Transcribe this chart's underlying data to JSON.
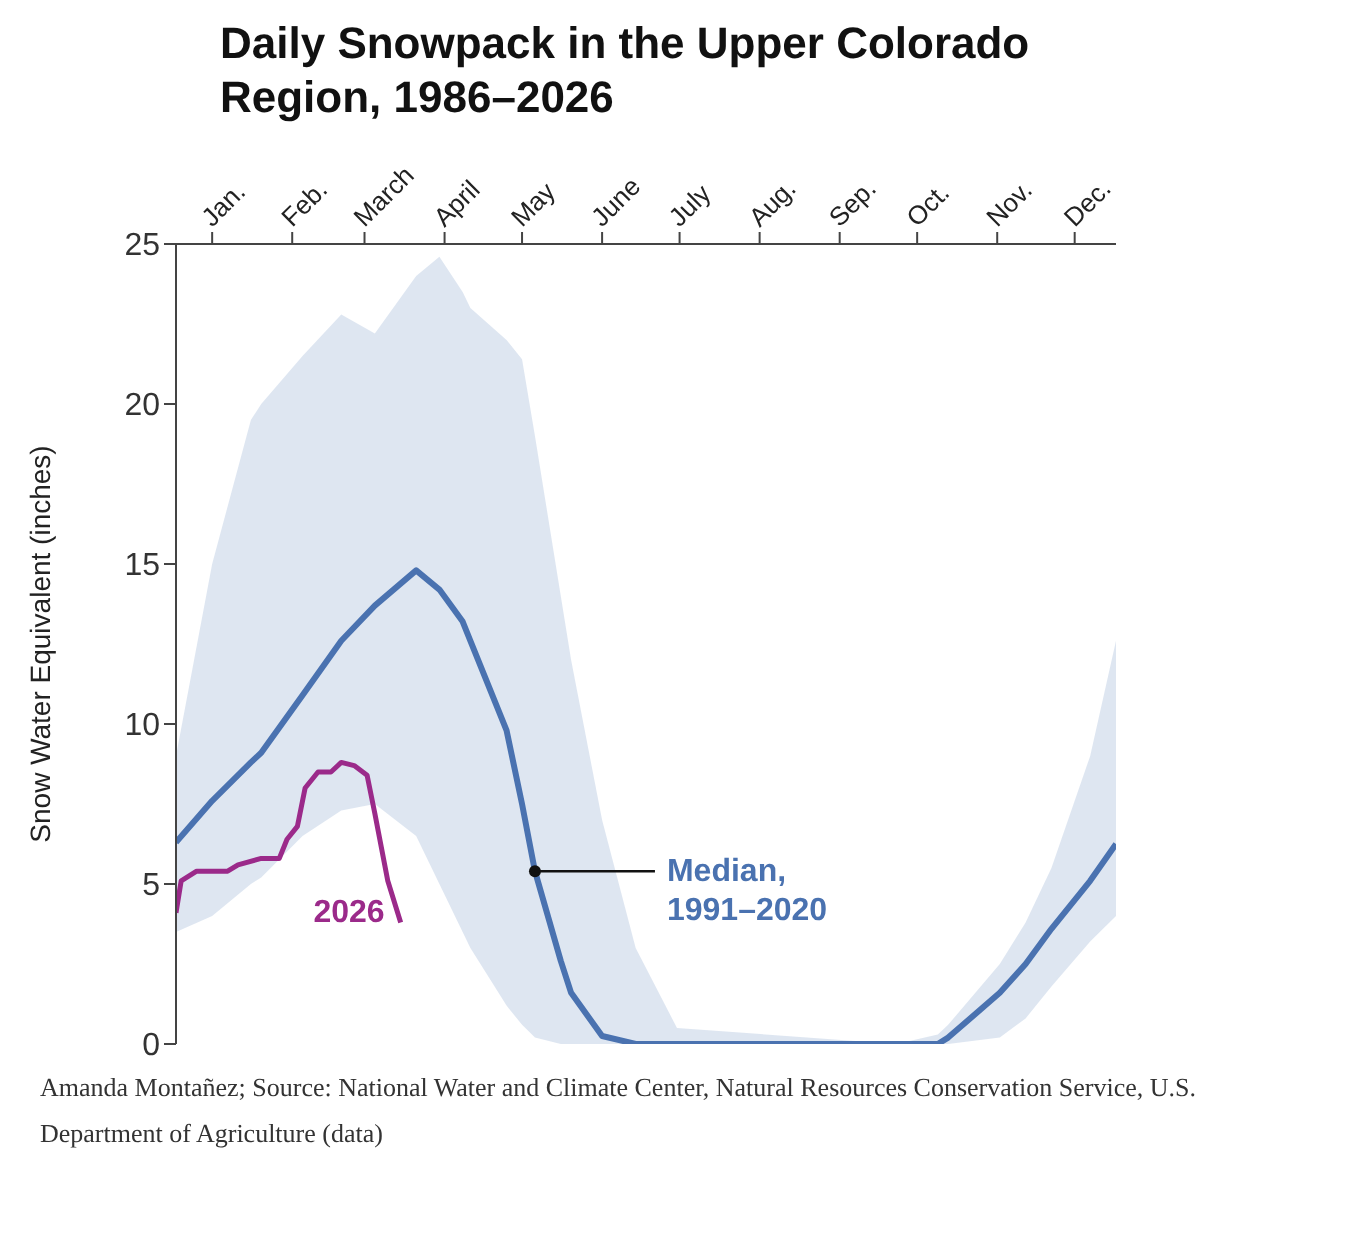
{
  "chart_data": {
    "type": "line",
    "title": "Daily Snowpack in the Upper Colorado Region, 1986–2026",
    "ylabel": "Snow Water Equivalent (inches)",
    "annotations": [
      {
        "text": "Median,\n1991–2020",
        "x": "--05-20",
        "y": 5.4
      },
      "Amanda Montañez; Source: National Water and Climate Center, Natural Resources Conservation Service, U.S. Department of Agriculture (data)"
    ],
    "xlim": [
      "--01-01",
      "--12-31"
    ],
    "xticks": [
      {
        "value": "--01-15",
        "label": "Jan."
      },
      {
        "value": "--02-15",
        "label": "Feb."
      },
      {
        "value": "--03-15",
        "label": "March"
      },
      {
        "value": "--04-15",
        "label": "April"
      },
      {
        "value": "--05-15",
        "label": "May"
      },
      {
        "value": "--06-15",
        "label": "June"
      },
      {
        "value": "--07-15",
        "label": "July"
      },
      {
        "value": "--08-15",
        "label": "Aug."
      },
      {
        "value": "--09-15",
        "label": "Sep."
      },
      {
        "value": "--10-15",
        "label": "Oct."
      },
      {
        "value": "--11-15",
        "label": "Nov."
      },
      {
        "value": "--12-15",
        "label": "Dec."
      }
    ],
    "ylim": [
      0,
      25
    ],
    "yticks": [
      0,
      5,
      10,
      15,
      20,
      25
    ],
    "grid": false,
    "legend": false,
    "marker": "none",
    "series": [
      {
        "color": "#4a72b0",
        "x": [
          "--01-01",
          "--01-15",
          "--01-30",
          "--02-03",
          "--02-19",
          "--03-06",
          "--03-19",
          "--04-04",
          "--04-13",
          "--04-22",
          "--04-25",
          "--05-09",
          "--05-15",
          "--05-20",
          "--05-30",
          "--06-03",
          "--06-15",
          "--06-28",
          "--07-14",
          "--10-07",
          "--10-23",
          "--10-27",
          "--11-16",
          "--11-26",
          "--12-06",
          "--12-21",
          "--12-31"
        ],
        "values": [
          6.3,
          7.6,
          8.8,
          9.1,
          10.9,
          12.6,
          13.7,
          14.8,
          14.2,
          13.2,
          12.6,
          9.8,
          7.5,
          5.4,
          2.6,
          1.6,
          0.25,
          0,
          0,
          0,
          0,
          0.2,
          1.6,
          2.5,
          3.6,
          5.1,
          6.25
        ],
        "lower": [
          3.5,
          4,
          5,
          5.2,
          6.5,
          7.3,
          7.5,
          6.5,
          5,
          3.5,
          3,
          1.2,
          0.6,
          0.2,
          0,
          0,
          0,
          0,
          0,
          0,
          0,
          0,
          0.2,
          0.8,
          1.8,
          3.2,
          4
        ],
        "upper": [
          9,
          15,
          19.5,
          20,
          21.5,
          22.8,
          22.2,
          24,
          24.6,
          23.5,
          23,
          22,
          21.4,
          19,
          14,
          12,
          7,
          3,
          0.5,
          0,
          0.3,
          0.6,
          2.5,
          3.8,
          5.5,
          9,
          12.6
        ]
      },
      {
        "name": "2026",
        "color": "#9b2a8a",
        "x": [
          "--01-01",
          "--01-03",
          "--01-09",
          "--01-21",
          "--01-25",
          "--02-03",
          "--02-10",
          "--02-13",
          "--02-17",
          "--02-20",
          "--02-25",
          "--03-02",
          "--03-06",
          "--03-11",
          "--03-16",
          "--03-19",
          "--03-24",
          "--03-29"
        ],
        "values": [
          4.1,
          5.1,
          5.4,
          5.4,
          5.6,
          5.8,
          5.8,
          6.4,
          6.8,
          8.0,
          8.5,
          8.5,
          8.8,
          8.7,
          8.4,
          7.2,
          5.1,
          3.8
        ]
      }
    ]
  }
}
